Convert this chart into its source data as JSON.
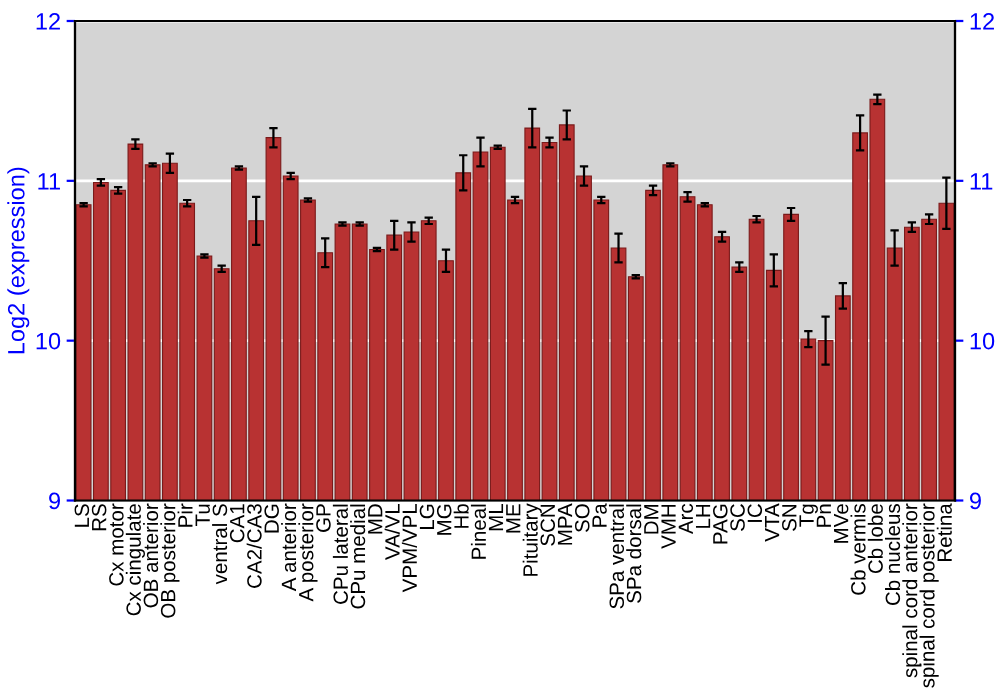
{
  "chart_data": {
    "type": "bar",
    "ylabel": "Log2 (expression)",
    "categories": [
      "LS",
      "RS",
      "Cx motor",
      "Cx cingulate",
      "OB anterior",
      "OB posterior",
      "Pir",
      "Tu",
      "ventral S",
      "CA1",
      "CA2/CA3",
      "DG",
      "A anterior",
      "A posterior",
      "GP",
      "CPu lateral",
      "CPu medial",
      "MD",
      "VA/VL",
      "VPM/VPL",
      "LG",
      "MG",
      "Hb",
      "Pineal",
      "ML",
      "ME",
      "Pituitary",
      "SCN",
      "MPA",
      "SO",
      "Pa",
      "SPa ventral",
      "SPa dorsal",
      "DM",
      "VMH",
      "Arc",
      "LH",
      "PAG",
      "SC",
      "IC",
      "VTA",
      "SN",
      "Tg",
      "Pn",
      "MVe",
      "Cb vermis",
      "Cb lobe",
      "Cb nucleus",
      "spinal cord anterior",
      "spinal cord posterior",
      "Retina"
    ],
    "values": [
      10.85,
      10.99,
      10.94,
      11.23,
      11.1,
      11.11,
      10.86,
      10.53,
      10.45,
      11.08,
      10.75,
      11.27,
      11.03,
      10.88,
      10.55,
      10.73,
      10.73,
      10.57,
      10.66,
      10.68,
      10.75,
      10.5,
      11.05,
      11.18,
      11.21,
      10.88,
      11.33,
      11.24,
      11.35,
      11.03,
      10.88,
      10.58,
      10.4,
      10.94,
      11.1,
      10.9,
      10.85,
      10.65,
      10.46,
      10.76,
      10.44,
      10.79,
      10.01,
      10.0,
      10.28,
      11.3,
      11.51,
      10.58,
      10.71,
      10.76,
      10.86
    ],
    "errors": [
      0.01,
      0.02,
      0.02,
      0.03,
      0.01,
      0.06,
      0.02,
      0.01,
      0.02,
      0.01,
      0.15,
      0.06,
      0.02,
      0.01,
      0.09,
      0.01,
      0.01,
      0.01,
      0.09,
      0.06,
      0.02,
      0.07,
      0.11,
      0.09,
      0.01,
      0.02,
      0.12,
      0.03,
      0.09,
      0.06,
      0.02,
      0.09,
      0.01,
      0.03,
      0.01,
      0.03,
      0.01,
      0.03,
      0.03,
      0.02,
      0.1,
      0.04,
      0.05,
      0.15,
      0.08,
      0.11,
      0.03,
      0.11,
      0.03,
      0.03,
      0.16
    ],
    "color": "#b83232",
    "ylim": [
      9,
      12
    ],
    "yticks": [
      9,
      10,
      11,
      12
    ],
    "y2lim": [
      9,
      12
    ],
    "y2ticks": [
      9,
      10,
      11,
      12
    ],
    "grid": "y"
  }
}
